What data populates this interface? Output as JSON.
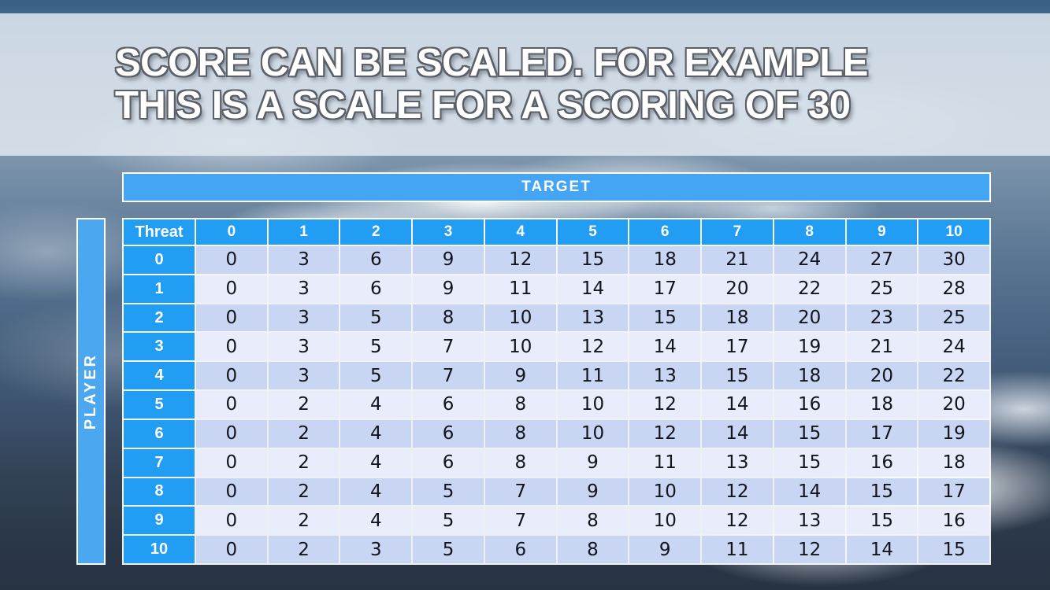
{
  "slide": {
    "title_line1": "SCORE CAN BE SCALED. FOR EXAMPLE",
    "title_line2": "THIS IS A SCALE FOR A SCORING OF 30"
  },
  "table": {
    "target_label": "TARGET",
    "player_label": "PLAYER",
    "corner_label": "Threat",
    "column_headers": [
      "0",
      "1",
      "2",
      "3",
      "4",
      "5",
      "6",
      "7",
      "8",
      "9",
      "10"
    ],
    "row_headers": [
      "0",
      "1",
      "2",
      "3",
      "4",
      "5",
      "6",
      "7",
      "8",
      "9",
      "10"
    ],
    "rows": [
      [
        0,
        3,
        6,
        9,
        12,
        15,
        18,
        21,
        24,
        27,
        30
      ],
      [
        0,
        3,
        6,
        9,
        11,
        14,
        17,
        20,
        22,
        25,
        28
      ],
      [
        0,
        3,
        5,
        8,
        10,
        13,
        15,
        18,
        20,
        23,
        25
      ],
      [
        0,
        3,
        5,
        7,
        10,
        12,
        14,
        17,
        19,
        21,
        24
      ],
      [
        0,
        3,
        5,
        7,
        9,
        11,
        13,
        15,
        18,
        20,
        22
      ],
      [
        0,
        2,
        4,
        6,
        8,
        10,
        12,
        14,
        16,
        18,
        20
      ],
      [
        0,
        2,
        4,
        6,
        8,
        10,
        12,
        14,
        15,
        17,
        19
      ],
      [
        0,
        2,
        4,
        6,
        8,
        9,
        11,
        13,
        15,
        16,
        18
      ],
      [
        0,
        2,
        4,
        5,
        7,
        9,
        10,
        12,
        14,
        15,
        17
      ],
      [
        0,
        2,
        4,
        5,
        7,
        8,
        10,
        12,
        13,
        15,
        16
      ],
      [
        0,
        2,
        3,
        5,
        6,
        8,
        9,
        11,
        12,
        14,
        15
      ]
    ]
  },
  "colors": {
    "banner_blue": "#43a5f3",
    "player_blue": "#4aa7f0",
    "header_blue": "#219df3",
    "row_stripe_dark": "#c8d6f4",
    "row_stripe_light": "#e9edfb",
    "title_band": "#dfe7ef",
    "top_sky_strip": "#3a5f84",
    "title_outline": "#5b5f66"
  }
}
